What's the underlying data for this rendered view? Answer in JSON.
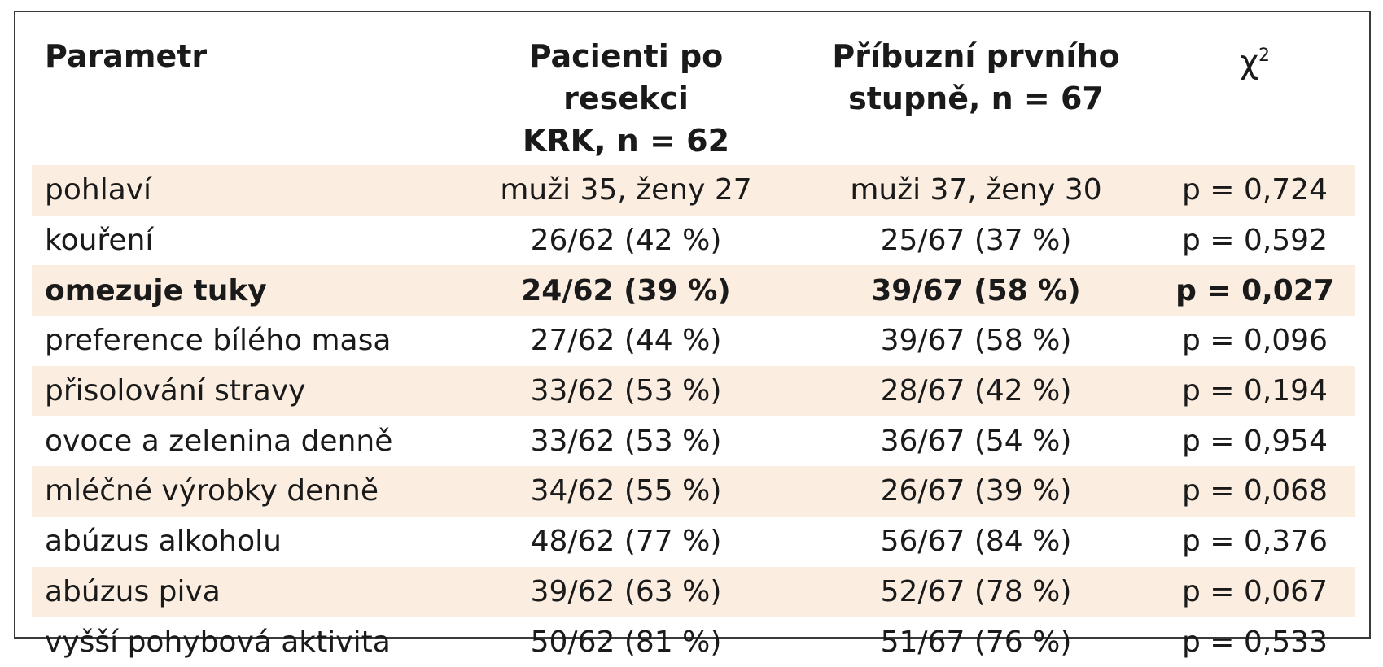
{
  "header": {
    "col1": "Parametr",
    "col2_line1": "Pacienti po resekci",
    "col2_line2": "KRK, n = 62",
    "col3_line1": "Příbuzní prvního",
    "col3_line2": "stupně, n = 67",
    "col4_symbol": "χ",
    "col4_sup": "2"
  },
  "rows": [
    {
      "label": "pohlaví",
      "patients": "muži 35, ženy 27",
      "relatives": "muži 37, ženy 30",
      "chi2": "p = 0,724"
    },
    {
      "label": "kouření",
      "patients": "26/62 (42 %)",
      "relatives": "25/67 (37 %)",
      "chi2": "p = 0,592"
    },
    {
      "label": "omezuje tuky",
      "patients": "24/62 (39 %)",
      "relatives": "39/67 (58 %)",
      "chi2": "p = 0,027"
    },
    {
      "label": "preference bílého masa",
      "patients": "27/62 (44 %)",
      "relatives": "39/67 (58 %)",
      "chi2": "p = 0,096"
    },
    {
      "label": "přisolování stravy",
      "patients": "33/62 (53 %)",
      "relatives": "28/67 (42 %)",
      "chi2": "p = 0,194"
    },
    {
      "label": "ovoce a zelenina denně",
      "patients": "33/62 (53 %)",
      "relatives": "36/67 (54 %)",
      "chi2": "p = 0,954"
    },
    {
      "label": "mléčné výrobky denně",
      "patients": "34/62 (55 %)",
      "relatives": "26/67 (39 %)",
      "chi2": "p = 0,068"
    },
    {
      "label": "abúzus alkoholu",
      "patients": "48/62 (77 %)",
      "relatives": "56/67 (84 %)",
      "chi2": "p = 0,376"
    },
    {
      "label": "abúzus piva",
      "patients": "39/62 (63 %)",
      "relatives": "52/67 (78 %)",
      "chi2": "p = 0,067"
    },
    {
      "label": "vyšší pohybová aktivita",
      "patients": "50/62 (81 %)",
      "relatives": "51/67 (76 %)",
      "chi2": "p = 0,533"
    }
  ],
  "colors": {
    "row_shade": "#fbeee1",
    "border": "#3a3a3a",
    "text": "#1a1a1a"
  }
}
